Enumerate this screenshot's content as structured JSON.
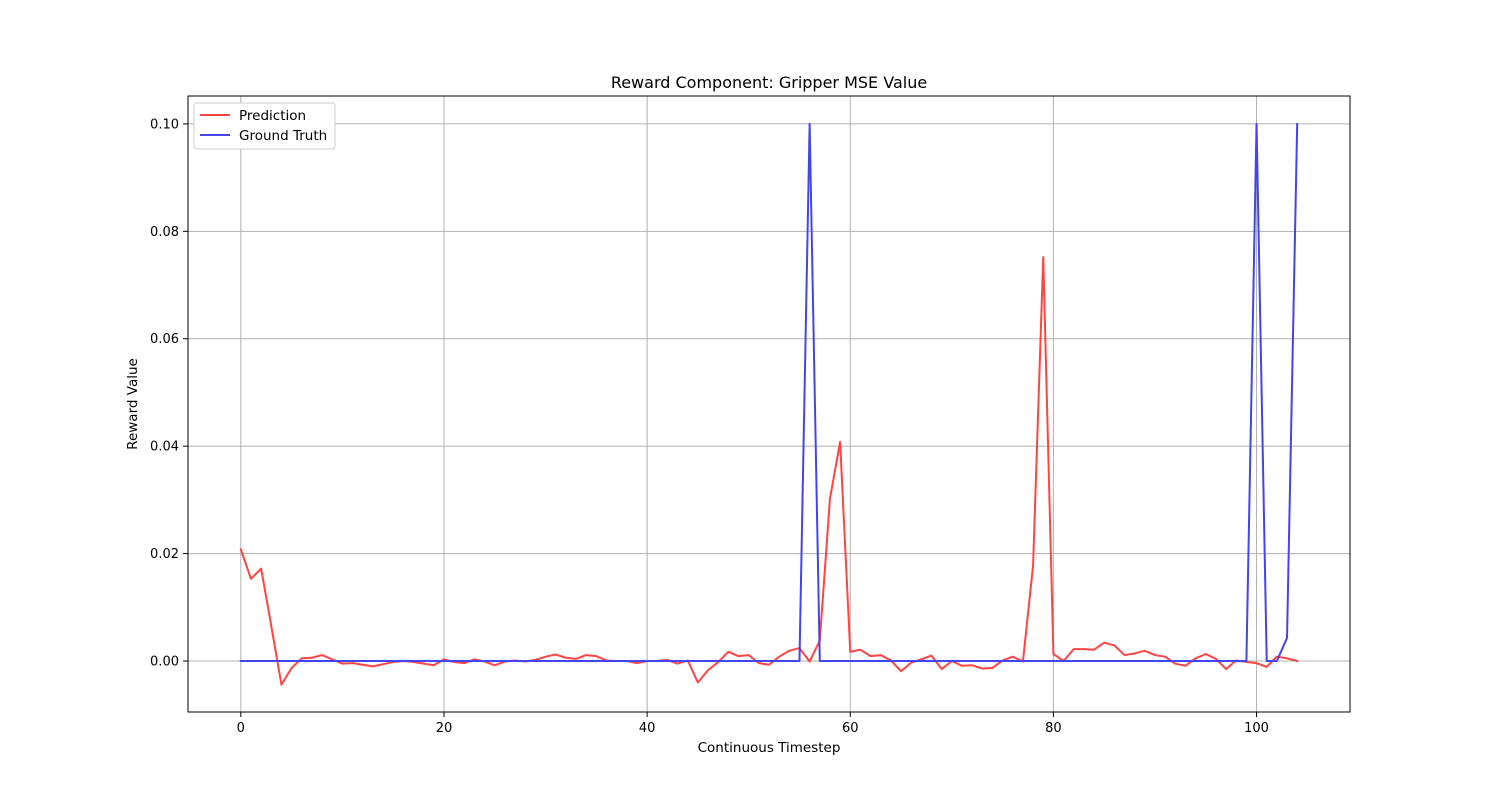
{
  "chart_data": {
    "type": "line",
    "title": "Reward Component: Gripper MSE Value",
    "xlabel": "Continuous Timestep",
    "ylabel": "Reward Value",
    "xlim": [
      -5.2,
      109.2
    ],
    "ylim": [
      -0.0095,
      0.1052
    ],
    "xticks": [
      0,
      20,
      40,
      60,
      80,
      100
    ],
    "yticks": [
      0.0,
      0.02,
      0.04,
      0.06,
      0.08,
      0.1
    ],
    "xtick_labels": [
      "0",
      "20",
      "40",
      "60",
      "80",
      "100"
    ],
    "ytick_labels": [
      "0.00",
      "0.02",
      "0.04",
      "0.06",
      "0.08",
      "0.10"
    ],
    "grid": true,
    "legend_position": "upper-left",
    "series": [
      {
        "name": "Prediction",
        "color": "#ff4444",
        "x": [
          0,
          1,
          2,
          3,
          4,
          5,
          6,
          7,
          8,
          9,
          10,
          11,
          12,
          13,
          14,
          15,
          16,
          17,
          18,
          19,
          20,
          21,
          22,
          23,
          24,
          25,
          26,
          27,
          28,
          29,
          30,
          31,
          32,
          33,
          34,
          35,
          36,
          37,
          38,
          39,
          40,
          41,
          42,
          43,
          44,
          45,
          46,
          47,
          48,
          49,
          50,
          51,
          52,
          53,
          54,
          55,
          56,
          57,
          58,
          59,
          60,
          61,
          62,
          63,
          64,
          65,
          66,
          67,
          68,
          69,
          70,
          71,
          72,
          73,
          74,
          75,
          76,
          77,
          78,
          79,
          80,
          81,
          82,
          83,
          84,
          85,
          86,
          87,
          88,
          89,
          90,
          91,
          92,
          93,
          94,
          95,
          96,
          97,
          98,
          99,
          100,
          101,
          102,
          103,
          104
        ],
        "values": [
          0.0208,
          0.0153,
          0.0172,
          0.0065,
          -0.0044,
          -0.0013,
          0.0005,
          0.0006,
          0.0011,
          0.0003,
          -0.0005,
          -0.0004,
          -0.0007,
          -0.001,
          -0.0006,
          -0.0002,
          0.0,
          -0.0002,
          -0.0005,
          -0.0008,
          0.0003,
          -0.0002,
          -0.0004,
          0.0003,
          -0.0001,
          -0.0008,
          -0.0001,
          0.0001,
          -0.0001,
          0.0002,
          0.0008,
          0.0012,
          0.0006,
          0.0004,
          0.0011,
          0.0009,
          0.0001,
          0.0,
          0.0,
          -0.0004,
          0.0,
          0.0,
          0.0002,
          -0.0005,
          0.0001,
          -0.004,
          -0.0017,
          -0.0002,
          0.0017,
          0.0009,
          0.0011,
          -0.0004,
          -0.0007,
          0.0008,
          0.0019,
          0.0024,
          -0.0001,
          0.0038,
          0.0302,
          0.0408,
          0.0017,
          0.0021,
          0.0009,
          0.0011,
          0.0001,
          -0.0019,
          -0.0003,
          0.0003,
          0.001,
          -0.0015,
          0.0,
          -0.0009,
          -0.0008,
          -0.0014,
          -0.0013,
          0.0001,
          0.0008,
          -0.0001,
          0.0178,
          0.0752,
          0.0013,
          0.0,
          0.0022,
          0.0022,
          0.0021,
          0.0034,
          0.0029,
          0.0011,
          0.0014,
          0.0019,
          0.0011,
          0.0008,
          -0.0005,
          -0.0009,
          0.0005,
          0.0013,
          0.0004,
          -0.0015,
          0.0001,
          -0.0002,
          -0.0004,
          -0.0011,
          0.0008,
          0.0005,
          0.0
        ]
      },
      {
        "name": "Ground Truth",
        "color": "#4444ee",
        "x": [
          0,
          1,
          2,
          3,
          4,
          5,
          6,
          7,
          8,
          9,
          10,
          11,
          12,
          13,
          14,
          15,
          16,
          17,
          18,
          19,
          20,
          21,
          22,
          23,
          24,
          25,
          26,
          27,
          28,
          29,
          30,
          31,
          32,
          33,
          34,
          35,
          36,
          37,
          38,
          39,
          40,
          41,
          42,
          43,
          44,
          45,
          46,
          47,
          48,
          49,
          50,
          51,
          52,
          53,
          54,
          55,
          56,
          57,
          58,
          59,
          60,
          61,
          62,
          63,
          64,
          65,
          66,
          67,
          68,
          69,
          70,
          71,
          72,
          73,
          74,
          75,
          76,
          77,
          78,
          79,
          80,
          81,
          82,
          83,
          84,
          85,
          86,
          87,
          88,
          89,
          90,
          91,
          92,
          93,
          94,
          95,
          96,
          97,
          98,
          99,
          100,
          101,
          102,
          103,
          104
        ],
        "values": [
          0,
          0,
          0,
          0,
          0,
          0,
          0,
          0,
          0,
          0,
          0,
          0,
          0,
          0,
          0,
          0,
          0,
          0,
          0,
          0,
          0,
          0,
          0,
          0,
          0,
          0,
          0,
          0,
          0,
          0,
          0,
          0,
          0,
          0,
          0,
          0,
          0,
          0,
          0,
          0,
          0,
          0,
          0,
          0,
          0,
          0,
          0,
          0,
          0,
          0,
          0,
          0,
          0,
          0,
          0,
          0,
          0.1,
          0,
          0,
          0,
          0,
          0,
          0,
          0,
          0,
          0,
          0,
          0,
          0,
          0,
          0,
          0,
          0,
          0,
          0,
          0,
          0,
          0,
          0,
          0,
          0,
          0,
          0,
          0,
          0,
          0,
          0,
          0,
          0,
          0,
          0,
          0,
          0,
          0,
          0,
          0,
          0,
          0,
          0,
          0,
          0.1,
          0,
          0,
          0.0043,
          0.1
        ]
      }
    ]
  }
}
